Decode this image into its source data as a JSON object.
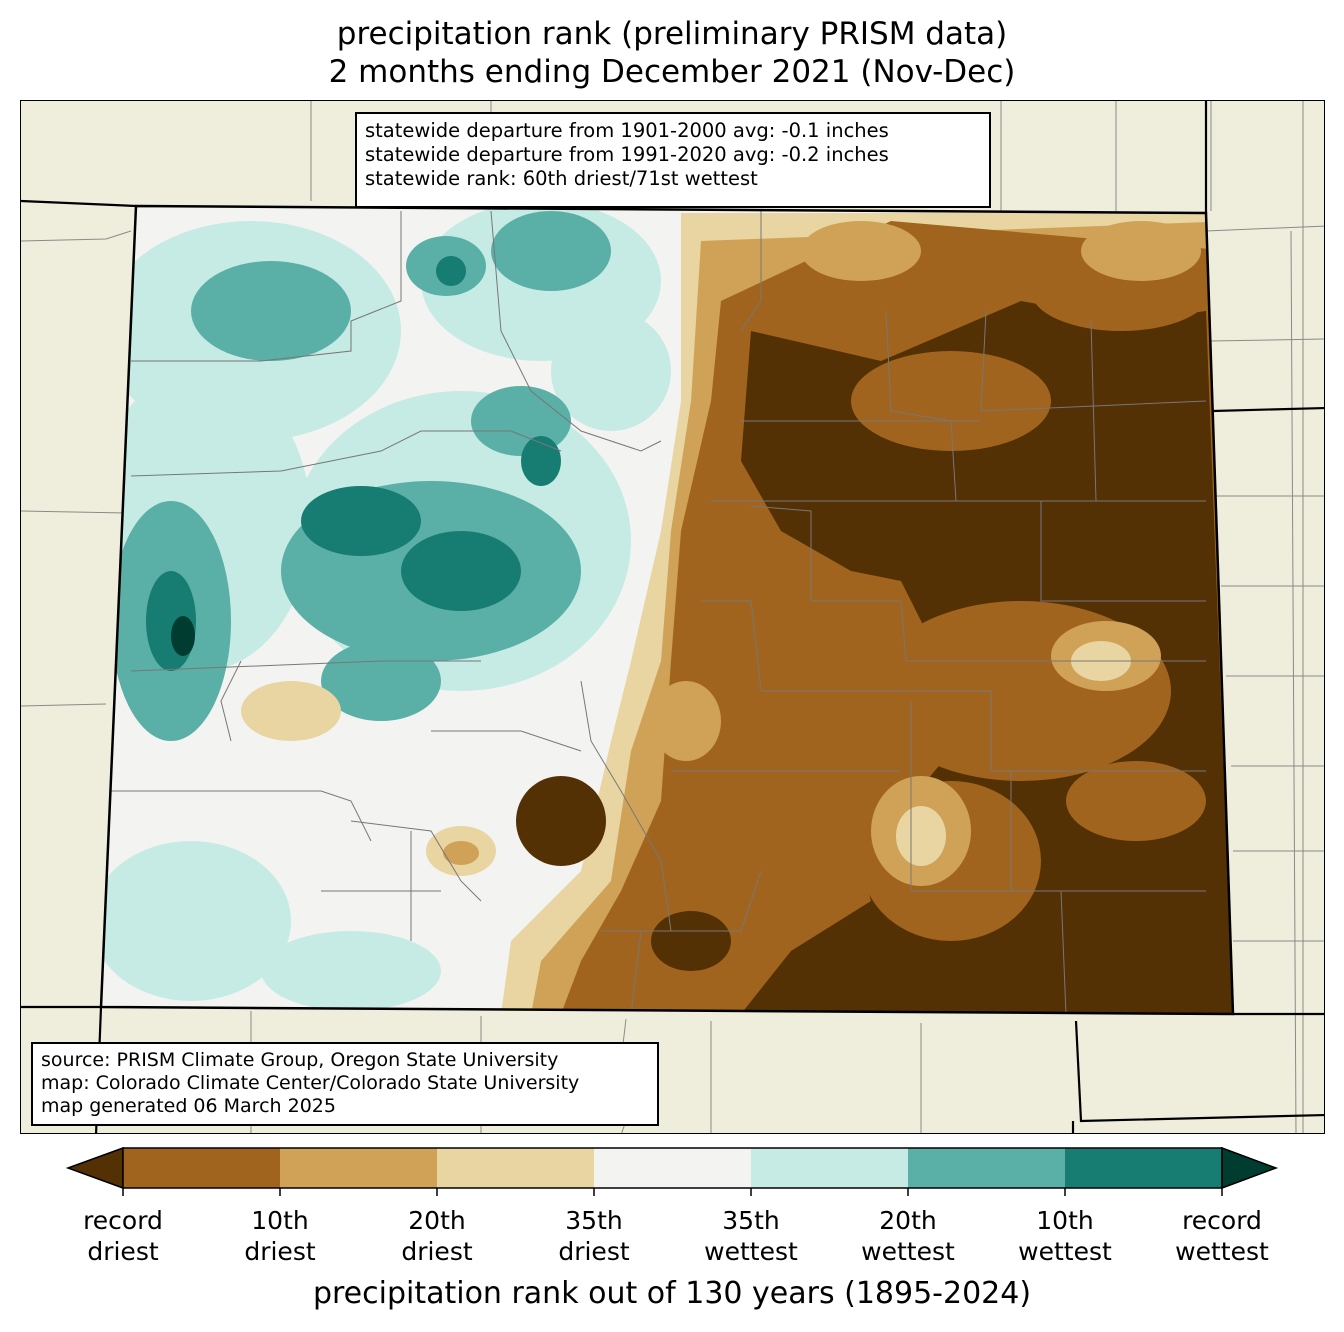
{
  "title": {
    "line1": "precipitation rank (preliminary PRISM data)",
    "line2": "2 months ending December 2021 (Nov-Dec)"
  },
  "stats_box": {
    "lines": [
      "statewide departure from 1901-2000 avg: -0.1 inches",
      "statewide departure from 1991-2020 avg: -0.2 inches",
      "statewide rank: 60th driest/71st wettest"
    ]
  },
  "source_box": {
    "lines": [
      "source: PRISM Climate Group, Oregon State University",
      "map: Colorado Climate Center/Colorado State University",
      "map generated 06 March 2025"
    ]
  },
  "colorbar": {
    "axis_label": "precipitation rank out of 130 years (1895-2024)",
    "colors": [
      "#543005",
      "#a0641e",
      "#cfa257",
      "#e9d5a1",
      "#f3f4f2",
      "#c6eae4",
      "#5aafa6",
      "#177c72",
      "#003c30"
    ],
    "tick_labels": [
      {
        "line1": "record",
        "line2": "driest"
      },
      {
        "line1": "10th",
        "line2": "driest"
      },
      {
        "line1": "20th",
        "line2": "driest"
      },
      {
        "line1": "35th",
        "line2": "driest"
      },
      {
        "line1": "35th",
        "line2": "wettest"
      },
      {
        "line1": "20th",
        "line2": "wettest"
      },
      {
        "line1": "10th",
        "line2": "wettest"
      },
      {
        "line1": "record",
        "line2": "wettest"
      }
    ]
  },
  "map": {
    "background_color": "#efeddb",
    "pattern": "west wetter than normal (teal), east drier than normal (brown)"
  }
}
